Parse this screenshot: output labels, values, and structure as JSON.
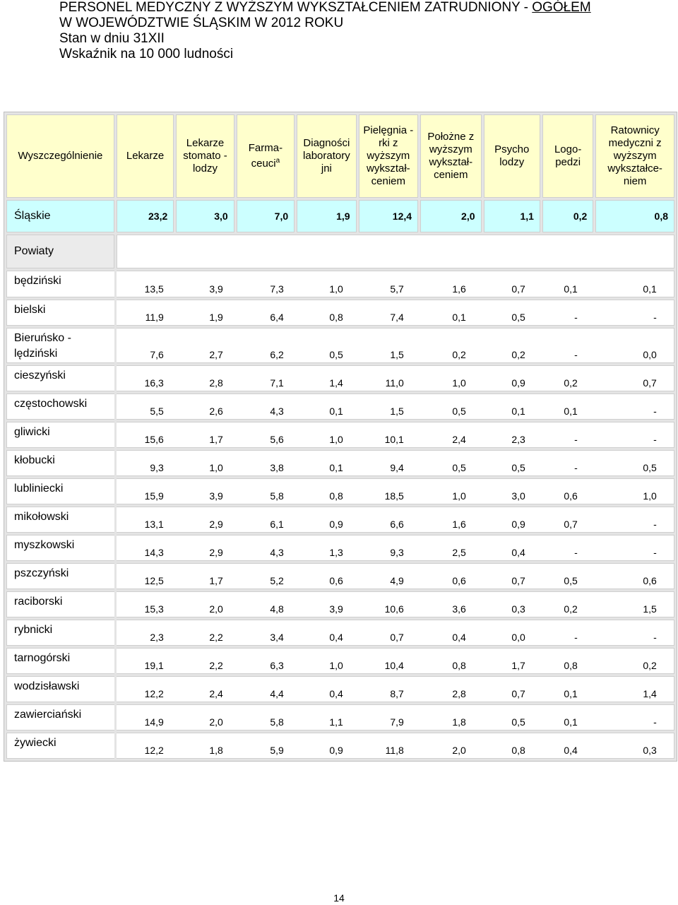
{
  "title": {
    "line1_main": "PERSONEL MEDYCZNY Z WYŻSZYM WYKSZTAŁCENIEM  ZATRUDNIONY - ",
    "line1_underlined": "OGÓŁEM",
    "line2": "W WOJEWÓDZTWIE ŚLĄSKIM W 2012 ROKU",
    "line3": "Stan w dniu 31XII",
    "line4": "Wskaźnik na 10 000 ludności"
  },
  "headers": {
    "h0": "Wyszczególnienie",
    "h1": "Lekarze",
    "h2": "Lekarze stomato -lodzy",
    "h3_main": "Farma- ceuci",
    "h3_sup": "a",
    "h4": "Diagności laboratory jni",
    "h5": "Pielęgnia -rki z wyższym wykształ- ceniem",
    "h6": "Położne z wyższym wykształ- ceniem",
    "h7": "Psycho lodzy",
    "h8": "Logo- pedzi",
    "h9": "Ratownicy medyczni z wyższym wykształce- niem"
  },
  "slaskie": {
    "label": "Śląskie",
    "values": [
      "23,2",
      "3,0",
      "7,0",
      "1,9",
      "12,4",
      "2,0",
      "1,1",
      "0,2",
      "0,8"
    ]
  },
  "powiaty_label": "Powiaty",
  "rows": [
    {
      "label": "będziński",
      "values": [
        "13,5",
        "3,9",
        "7,3",
        "1,0",
        "5,7",
        "1,6",
        "0,7",
        "0,1",
        "0,1"
      ]
    },
    {
      "label": "bielski",
      "values": [
        "11,9",
        "1,9",
        "6,4",
        "0,8",
        "7,4",
        "0,1",
        "0,5",
        "-",
        "-"
      ]
    },
    {
      "label": "Bieruńsko -lędziński",
      "values": [
        "7,6",
        "2,7",
        "6,2",
        "0,5",
        "1,5",
        "0,2",
        "0,2",
        "-",
        "0,0"
      ]
    },
    {
      "label": "cieszyński",
      "values": [
        "16,3",
        "2,8",
        "7,1",
        "1,4",
        "11,0",
        "1,0",
        "0,9",
        "0,2",
        "0,7"
      ]
    },
    {
      "label": "częstochowski",
      "values": [
        "5,5",
        "2,6",
        "4,3",
        "0,1",
        "1,5",
        "0,5",
        "0,1",
        "0,1",
        "-"
      ]
    },
    {
      "label": "gliwicki",
      "values": [
        "15,6",
        "1,7",
        "5,6",
        "1,0",
        "10,1",
        "2,4",
        "2,3",
        "-",
        "-"
      ]
    },
    {
      "label": "kłobucki",
      "values": [
        "9,3",
        "1,0",
        "3,8",
        "0,1",
        "9,4",
        "0,5",
        "0,5",
        "-",
        "0,5"
      ]
    },
    {
      "label": "lubliniecki",
      "values": [
        "15,9",
        "3,9",
        "5,8",
        "0,8",
        "18,5",
        "1,0",
        "3,0",
        "0,6",
        "1,0"
      ]
    },
    {
      "label": "mikołowski",
      "values": [
        "13,1",
        "2,9",
        "6,1",
        "0,9",
        "6,6",
        "1,6",
        "0,9",
        "0,7",
        "-"
      ]
    },
    {
      "label": "myszkowski",
      "values": [
        "14,3",
        "2,9",
        "4,3",
        "1,3",
        "9,3",
        "2,5",
        "0,4",
        "-",
        "-"
      ]
    },
    {
      "label": "pszczyński",
      "values": [
        "12,5",
        "1,7",
        "5,2",
        "0,6",
        "4,9",
        "0,6",
        "0,7",
        "0,5",
        "0,6"
      ]
    },
    {
      "label": "raciborski",
      "values": [
        "15,3",
        "2,0",
        "4,8",
        "3,9",
        "10,6",
        "3,6",
        "0,3",
        "0,2",
        "1,5"
      ]
    },
    {
      "label": "rybnicki",
      "values": [
        "2,3",
        "2,2",
        "3,4",
        "0,4",
        "0,7",
        "0,4",
        "0,0",
        "-",
        "-"
      ]
    },
    {
      "label": "tarnogórski",
      "values": [
        "19,1",
        "2,2",
        "6,3",
        "1,0",
        "10,4",
        "0,8",
        "1,7",
        "0,8",
        "0,2"
      ]
    },
    {
      "label": "wodzisławski",
      "values": [
        "12,2",
        "2,4",
        "4,4",
        "0,4",
        "8,7",
        "2,8",
        "0,7",
        "0,1",
        "1,4"
      ]
    },
    {
      "label": "zawierciański",
      "values": [
        "14,9",
        "2,0",
        "5,8",
        "1,1",
        "7,9",
        "1,8",
        "0,5",
        "0,1",
        "-"
      ]
    },
    {
      "label": "żywiecki",
      "values": [
        "12,2",
        "1,8",
        "5,9",
        "0,9",
        "11,8",
        "2,0",
        "0,8",
        "0,4",
        "0,3"
      ]
    }
  ],
  "page_number": "14"
}
